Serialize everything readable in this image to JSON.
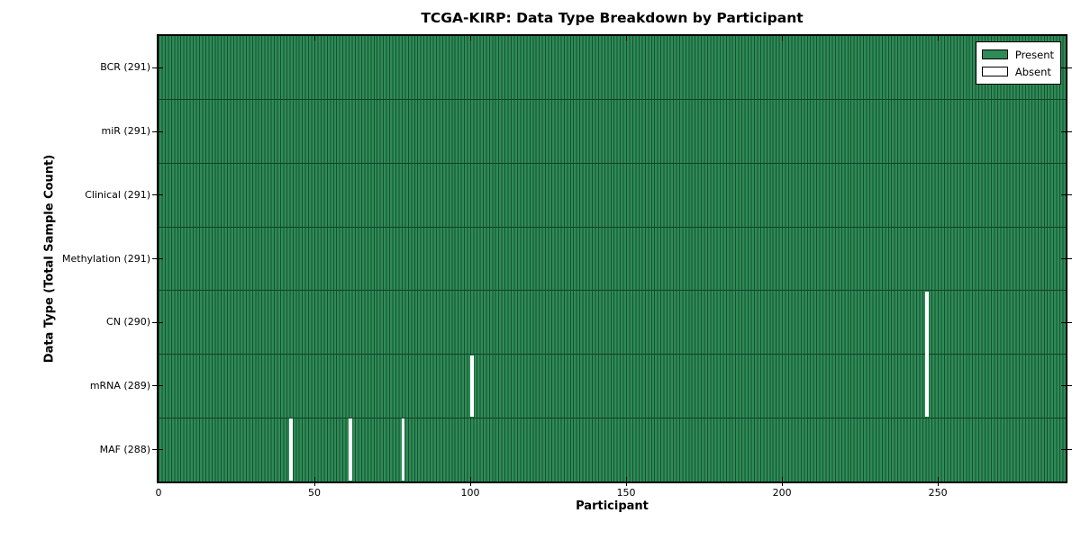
{
  "chart_data": {
    "type": "heatmap",
    "title": "TCGA-KIRP: Data Type Breakdown by Participant",
    "xlabel": "Participant",
    "ylabel": "Data Type (Total Sample Count)",
    "xlim": [
      0,
      291
    ],
    "n_participants": 291,
    "x_ticks": [
      0,
      50,
      100,
      150,
      200,
      250
    ],
    "grid": false,
    "rows": [
      {
        "label": "BCR (291)",
        "data_type": "BCR",
        "present_count": 291,
        "absent_participants": []
      },
      {
        "label": "miR (291)",
        "data_type": "miR",
        "present_count": 291,
        "absent_participants": []
      },
      {
        "label": "Clinical (291)",
        "data_type": "Clinical",
        "present_count": 291,
        "absent_participants": []
      },
      {
        "label": "Methylation (291)",
        "data_type": "Methylation",
        "present_count": 291,
        "absent_participants": []
      },
      {
        "label": "CN (290)",
        "data_type": "CN",
        "present_count": 290,
        "absent_participants": [
          246
        ]
      },
      {
        "label": "mRNA (289)",
        "data_type": "mRNA",
        "present_count": 289,
        "absent_participants": [
          100,
          246
        ]
      },
      {
        "label": "MAF (288)",
        "data_type": "MAF",
        "present_count": 288,
        "absent_participants": [
          42,
          61,
          78
        ]
      }
    ],
    "legend": {
      "position": "upper right",
      "items": [
        {
          "label": "Present",
          "color": "#2e8b57"
        },
        {
          "label": "Absent",
          "color": "#ffffff"
        }
      ]
    },
    "colors": {
      "present_fill": "#2e8b57",
      "bar_edge": "#16512f",
      "row_divider": "#123f26",
      "absent_fill": "#ffffff",
      "axis": "#000000"
    }
  }
}
